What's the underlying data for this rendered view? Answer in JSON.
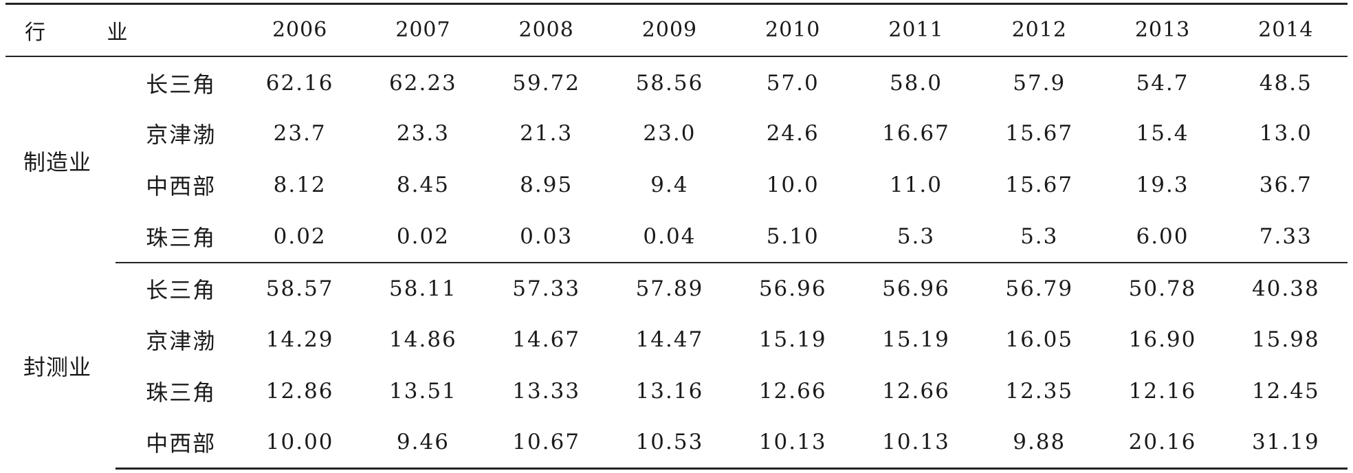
{
  "table": {
    "header": {
      "industry": "行 业",
      "years": [
        "2006",
        "2007",
        "2008",
        "2009",
        "2010",
        "2011",
        "2012",
        "2013",
        "2014"
      ]
    },
    "groups": [
      {
        "industry": "制造业",
        "rows": [
          {
            "region": "长三角",
            "values": [
              "62.16",
              "62.23",
              "59.72",
              "58.56",
              "57.0",
              "58.0",
              "57.9",
              "54.7",
              "48.5"
            ]
          },
          {
            "region": "京津渤",
            "values": [
              "23.7",
              "23.3",
              "21.3",
              "23.0",
              "24.6",
              "16.67",
              "15.67",
              "15.4",
              "13.0"
            ]
          },
          {
            "region": "中西部",
            "values": [
              "8.12",
              "8.45",
              "8.95",
              "9.4",
              "10.0",
              "11.0",
              "15.67",
              "19.3",
              "36.7"
            ]
          },
          {
            "region": "珠三角",
            "values": [
              "0.02",
              "0.02",
              "0.03",
              "0.04",
              "5.10",
              "5.3",
              "5.3",
              "6.00",
              "7.33"
            ]
          }
        ]
      },
      {
        "industry": "封测业",
        "rows": [
          {
            "region": "长三角",
            "values": [
              "58.57",
              "58.11",
              "57.33",
              "57.89",
              "56.96",
              "56.96",
              "56.79",
              "50.78",
              "40.38"
            ]
          },
          {
            "region": "京津渤",
            "values": [
              "14.29",
              "14.86",
              "14.67",
              "14.47",
              "15.19",
              "15.19",
              "16.05",
              "16.90",
              "15.98"
            ]
          },
          {
            "region": "珠三角",
            "values": [
              "12.86",
              "13.51",
              "13.33",
              "13.16",
              "12.66",
              "12.66",
              "12.35",
              "12.16",
              "12.45"
            ]
          },
          {
            "region": "中西部",
            "values": [
              "10.00",
              "9.46",
              "10.67",
              "10.53",
              "10.13",
              "10.13",
              "9.88",
              "20.16",
              "31.19"
            ]
          }
        ]
      }
    ]
  }
}
